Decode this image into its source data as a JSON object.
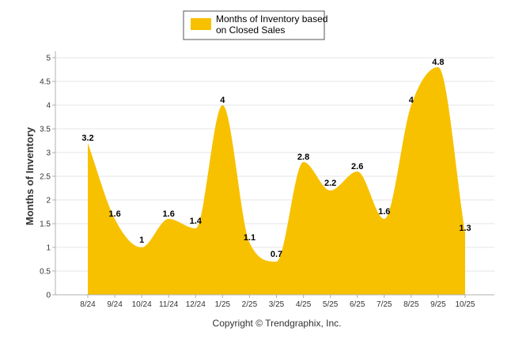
{
  "chart_data": {
    "type": "area",
    "legend": {
      "label_line1": "Months of Inventory based",
      "label_line2": "on Closed Sales",
      "placement": "top-center"
    },
    "ylabel": "Months of Inventory",
    "xlabel": "",
    "ylim": [
      0,
      5
    ],
    "yticks": [
      0,
      0.5,
      1,
      1.5,
      2,
      2.5,
      3,
      3.5,
      4,
      4.5,
      5
    ],
    "ytick_labels": [
      "0",
      "0.5",
      "1",
      "1.5",
      "2",
      "2.5",
      "3",
      "3.5",
      "4",
      "4.5",
      "5"
    ],
    "grid": true,
    "categories": [
      "8/24",
      "9/24",
      "10/24",
      "11/24",
      "12/24",
      "1/25",
      "2/25",
      "3/25",
      "4/25",
      "5/25",
      "6/25",
      "7/25",
      "8/25",
      "9/25",
      "10/25"
    ],
    "series": [
      {
        "name": "Months of Inventory based on Closed Sales",
        "values": [
          3.2,
          1.6,
          1,
          1.6,
          1.4,
          4,
          1.1,
          0.7,
          2.8,
          2.2,
          2.6,
          1.6,
          4,
          4.8,
          1.3
        ],
        "labels": [
          "3.2",
          "1.6",
          "1",
          "1.6",
          "1.4",
          "4",
          "1.1",
          "0.7",
          "2.8",
          "2.2",
          "2.6",
          "1.6",
          "4",
          "4.8",
          "1.3"
        ],
        "color": "#f7c100"
      }
    ]
  },
  "footer": {
    "copyright": "Copyright © Trendgraphix, Inc."
  },
  "colors": {
    "fill": "#f7c100",
    "grid": "#e6e6e6",
    "axis": "#b0b0b0",
    "legend_border": "#555555"
  }
}
